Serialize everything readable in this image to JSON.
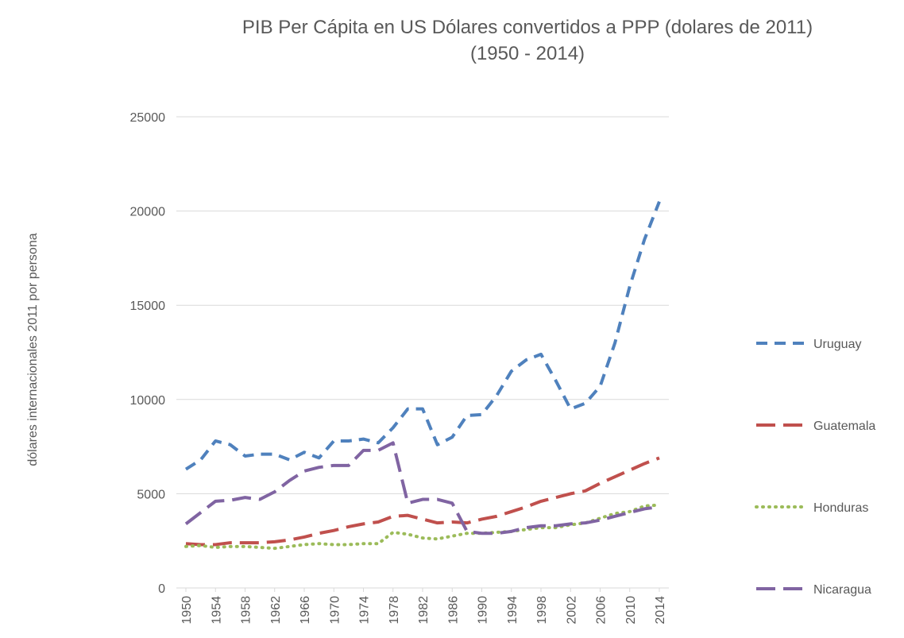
{
  "chart_data": {
    "type": "line",
    "title": "PIB Per Cápita en US Dólares convertidos a PPP (dolares de 2011)",
    "subtitle": "(1950 - 2014)",
    "y_label": "dólares  internacionales 2011 por persona",
    "x": [
      1950,
      1952,
      1954,
      1956,
      1958,
      1960,
      1962,
      1964,
      1966,
      1968,
      1970,
      1972,
      1974,
      1976,
      1978,
      1980,
      1982,
      1984,
      1986,
      1988,
      1990,
      1992,
      1994,
      1996,
      1998,
      2000,
      2002,
      2004,
      2006,
      2008,
      2010,
      2012,
      2014
    ],
    "xlim": [
      1950,
      2014
    ],
    "xticks": [
      1950,
      1954,
      1958,
      1962,
      1966,
      1970,
      1974,
      1978,
      1982,
      1986,
      1990,
      1994,
      1998,
      2002,
      2006,
      2010,
      2014
    ],
    "ylim": [
      0,
      25000
    ],
    "yticks": [
      0,
      5000,
      10000,
      15000,
      20000,
      25000
    ],
    "grid": true,
    "legend": "right",
    "series": [
      {
        "name": "Uruguay",
        "color": "#4f81bd",
        "line_style": "dashed",
        "values": [
          6300,
          6800,
          7800,
          7600,
          7000,
          7100,
          7100,
          6800,
          7200,
          6900,
          7800,
          7800,
          7900,
          7700,
          8500,
          9500,
          9500,
          7600,
          8000,
          9150,
          9200,
          10200,
          11500,
          12100,
          12400,
          11000,
          9500,
          9800,
          10700,
          13000,
          16000,
          18500,
          20500
        ]
      },
      {
        "name": "Guatemala",
        "color": "#c0504d",
        "line_style": "long-dash",
        "values": [
          2350,
          2300,
          2300,
          2400,
          2400,
          2400,
          2450,
          2550,
          2700,
          2900,
          3050,
          3250,
          3400,
          3500,
          3800,
          3850,
          3650,
          3450,
          3500,
          3450,
          3650,
          3800,
          4050,
          4300,
          4600,
          4800,
          5000,
          5150,
          5550,
          5900,
          6250,
          6600,
          6900
        ]
      },
      {
        "name": "Honduras",
        "color": "#9bbb59",
        "line_style": "dotted",
        "values": [
          2200,
          2250,
          2150,
          2200,
          2200,
          2150,
          2100,
          2200,
          2300,
          2350,
          2300,
          2300,
          2350,
          2350,
          2950,
          2850,
          2650,
          2600,
          2750,
          2900,
          2900,
          2950,
          3000,
          3100,
          3200,
          3200,
          3350,
          3450,
          3700,
          3950,
          4050,
          4350,
          4400
        ]
      },
      {
        "name": "Nicaragua",
        "color": "#8064a2",
        "line_style": "long-dash",
        "values": [
          3400,
          4000,
          4600,
          4650,
          4800,
          4700,
          5100,
          5700,
          6200,
          6400,
          6500,
          6500,
          7300,
          7300,
          7700,
          4500,
          4700,
          4700,
          4500,
          3000,
          2900,
          2900,
          3000,
          3200,
          3300,
          3300,
          3400,
          3450,
          3600,
          3800,
          4000,
          4200,
          4300
        ]
      }
    ]
  }
}
